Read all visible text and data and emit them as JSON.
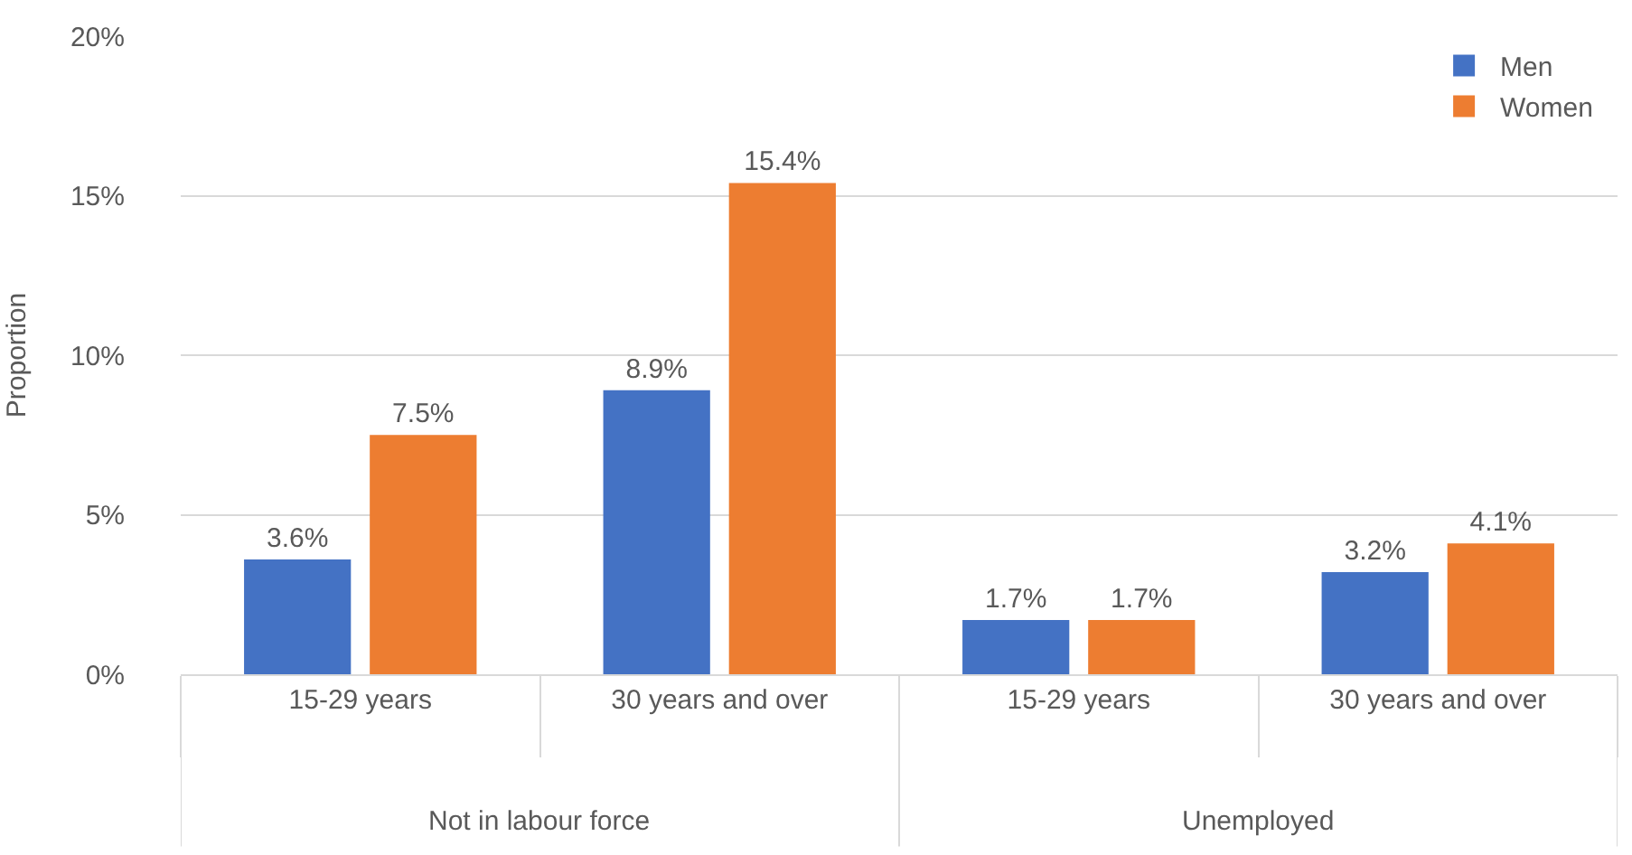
{
  "chart_data": {
    "type": "bar",
    "ylabel": "Proportion",
    "categories": [
      "15-29 years",
      "30 years and over",
      "15-29 years",
      "30 years and over"
    ],
    "annotations": [
      "Not in labour force",
      "Unemployed"
    ],
    "series": [
      {
        "name": "Men",
        "color": "#4472c4",
        "values": [
          3.6,
          8.9,
          1.7,
          3.2
        ],
        "value_labels": [
          "3.6%",
          "8.9%",
          "1.7%",
          "3.2%"
        ]
      },
      {
        "name": "Women",
        "color": "#ed7d31",
        "values": [
          7.5,
          15.4,
          1.7,
          4.1
        ],
        "value_labels": [
          "7.5%",
          "15.4%",
          "1.7%",
          "4.1%"
        ]
      }
    ],
    "ylim": [
      0,
      20
    ],
    "yticks": [
      {
        "value": 0,
        "label": "0%"
      },
      {
        "value": 5,
        "label": "5%"
      },
      {
        "value": 10,
        "label": "10%"
      },
      {
        "value": 15,
        "label": "15%"
      },
      {
        "value": 20,
        "label": "20%"
      }
    ],
    "grid": "y",
    "legend": "top right"
  }
}
